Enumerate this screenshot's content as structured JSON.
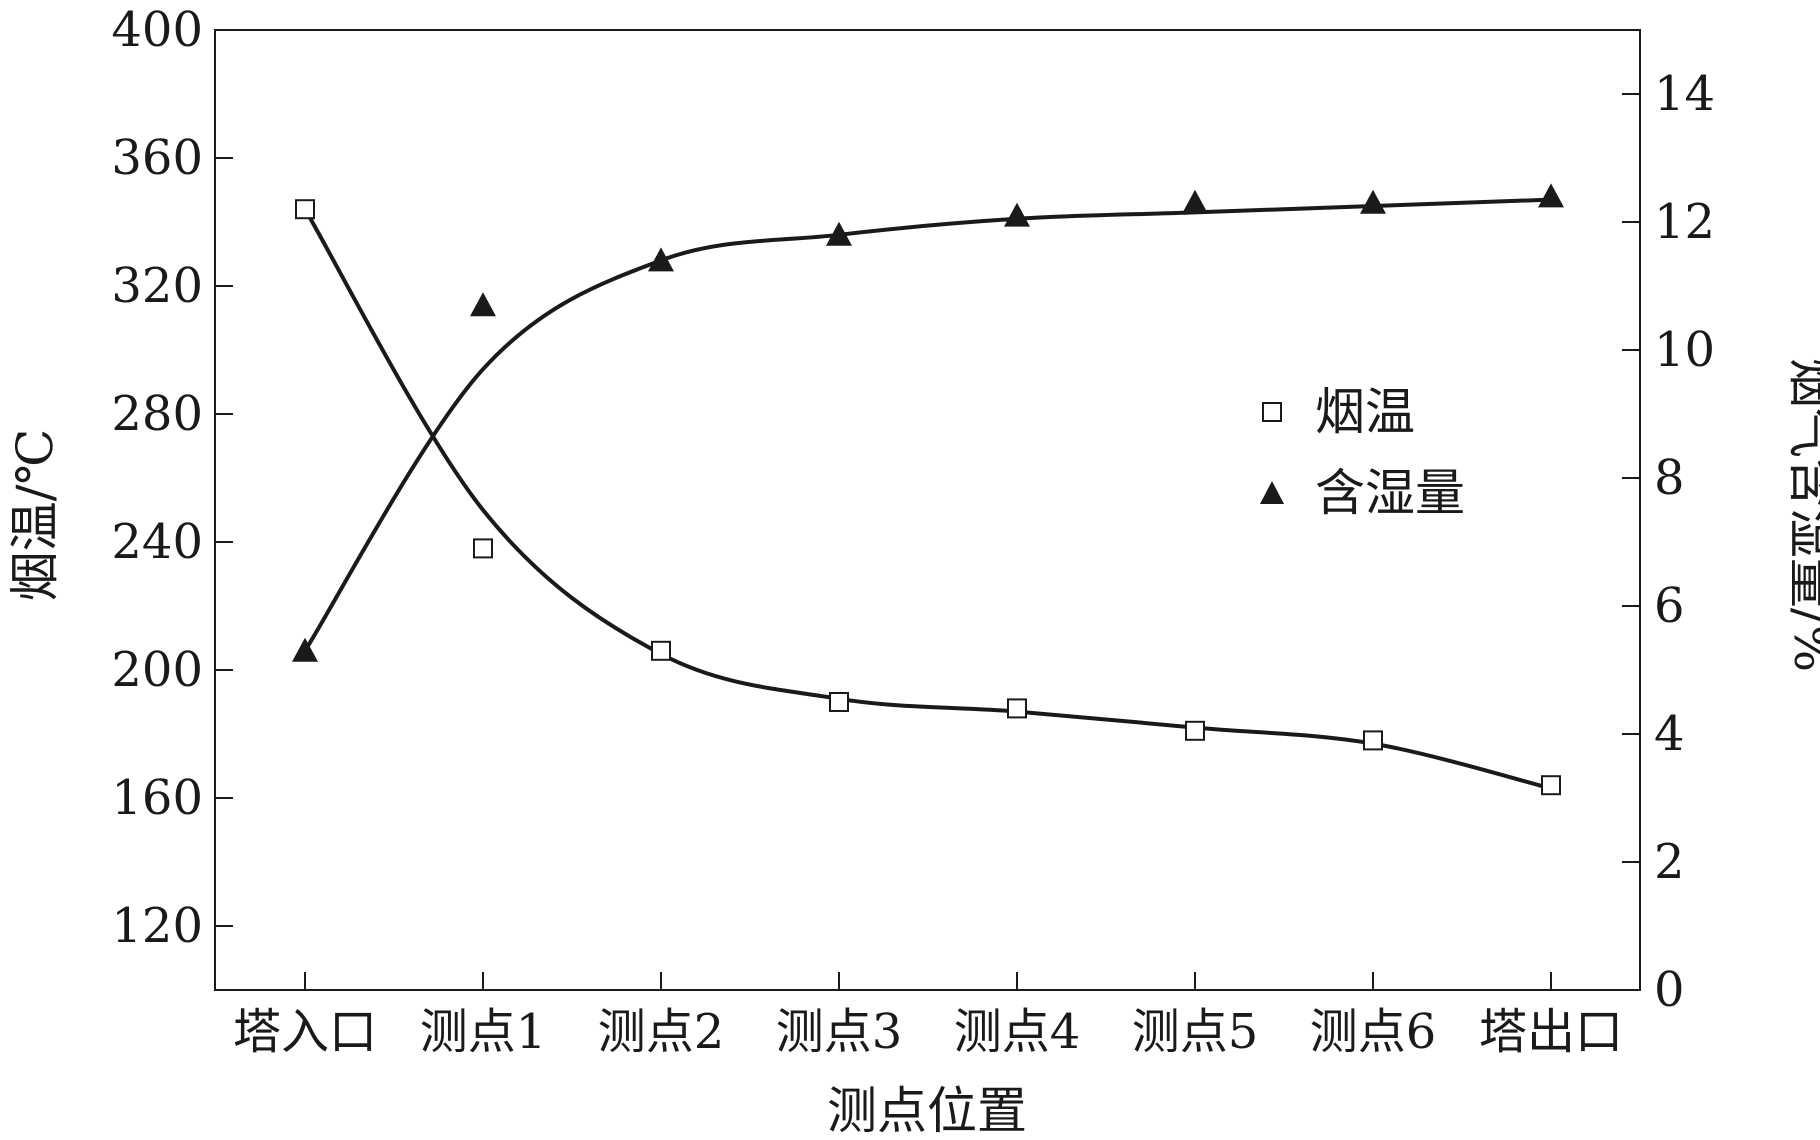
{
  "chart_data": {
    "type": "line",
    "title": "",
    "xlabel": "测点位置",
    "ylabel_left": "烟温/℃",
    "ylabel_right": "烟气含湿量/%",
    "categories": [
      "塔入口",
      "测点1",
      "测点2",
      "测点3",
      "测点4",
      "测点5",
      "测点6",
      "塔出口"
    ],
    "y_left": {
      "lim": [
        100,
        400
      ],
      "ticks": [
        120,
        160,
        200,
        240,
        280,
        320,
        360,
        400
      ],
      "tick_labels": [
        "120",
        "160",
        "200",
        "240",
        "280",
        "320",
        "360",
        "400"
      ]
    },
    "y_right": {
      "lim": [
        0,
        15
      ],
      "ticks": [
        0,
        2,
        4,
        6,
        8,
        10,
        12,
        14
      ],
      "tick_labels": [
        "0",
        "2",
        "4",
        "6",
        "8",
        "10",
        "12",
        "14"
      ]
    },
    "series": [
      {
        "name": "烟温",
        "axis": "left",
        "marker": "open-square",
        "values": [
          344,
          238,
          206,
          190,
          188,
          181,
          178,
          164
        ],
        "fit": [
          344,
          250,
          205,
          191,
          187,
          182,
          177,
          163
        ]
      },
      {
        "name": "含湿量",
        "axis": "right",
        "marker": "filled-triangle",
        "values": [
          5.3,
          10.7,
          11.4,
          11.8,
          12.1,
          12.3,
          12.3,
          12.4
        ],
        "fit": [
          5.3,
          9.7,
          11.4,
          11.8,
          12.05,
          12.15,
          12.25,
          12.35
        ]
      }
    ],
    "legend_position": "center-right",
    "grid": false,
    "colors": {
      "axis": "#1a1a1a",
      "line": "#1a1a1a",
      "marker_fill_open": "#ffffff"
    }
  }
}
